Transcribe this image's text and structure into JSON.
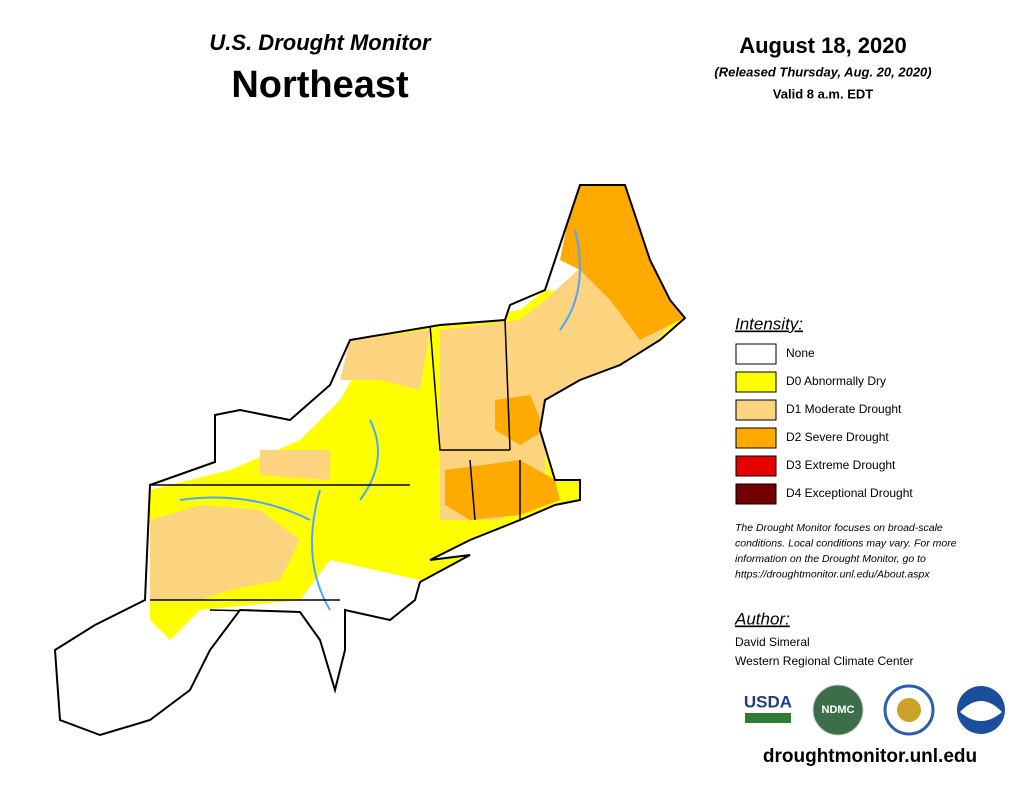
{
  "header": {
    "title": "U.S. Drought Monitor",
    "region": "Northeast",
    "date": "August 18, 2020",
    "released": "(Released Thursday, Aug. 20, 2020)",
    "valid": "Valid 8 a.m. EDT"
  },
  "legend": {
    "title": "Intensity:",
    "items": [
      {
        "label": "None",
        "color": "#ffffff"
      },
      {
        "label": "D0 Abnormally Dry",
        "color": "#ffff00"
      },
      {
        "label": "D1 Moderate Drought",
        "color": "#fcd37f"
      },
      {
        "label": "D2 Severe Drought",
        "color": "#ffaa00"
      },
      {
        "label": "D3 Extreme Drought",
        "color": "#e60000"
      },
      {
        "label": "D4 Exceptional Drought",
        "color": "#730000"
      }
    ]
  },
  "note": [
    "The Drought Monitor focuses on broad-scale",
    "conditions. Local conditions may vary. For more",
    "information on the Drought Monitor, go to",
    "https://droughtmonitor.unl.edu/About.aspx"
  ],
  "author": {
    "heading": "Author:",
    "lines": [
      "David Simeral",
      "Western Regional Climate Center"
    ]
  },
  "logos": [
    "USDA",
    "NDMC"
  ],
  "url": "droughtmonitor.unl.edu"
}
